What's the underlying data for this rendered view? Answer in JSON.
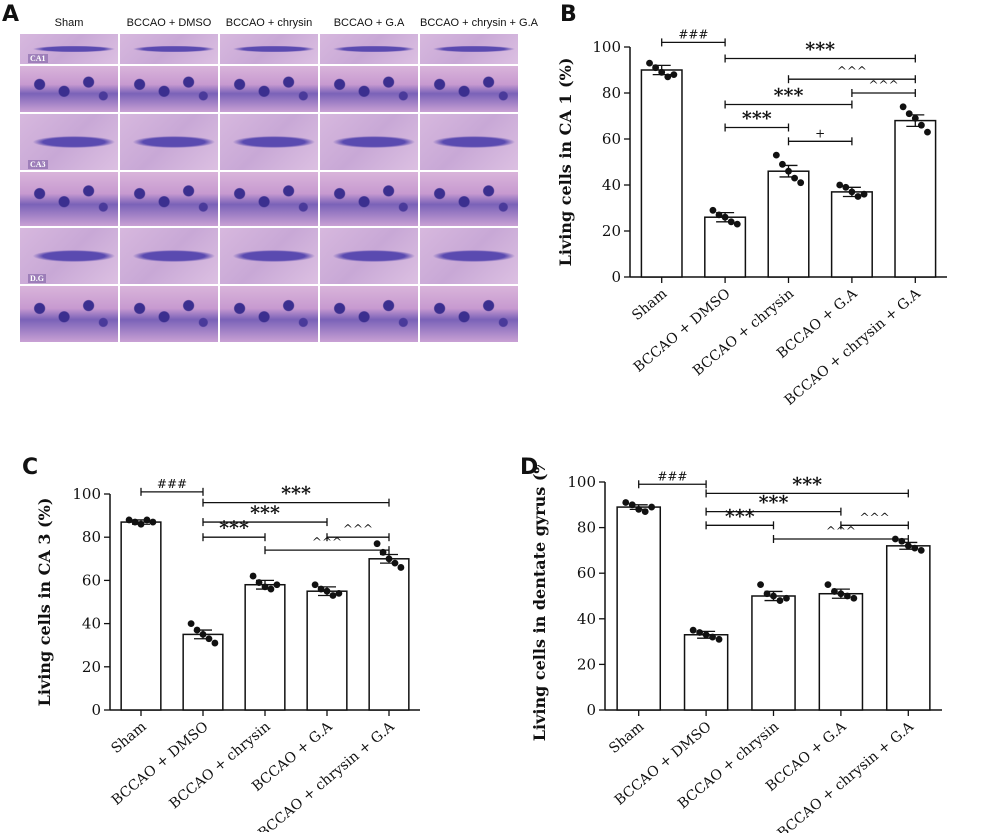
{
  "panels": {
    "a": "A",
    "b": "B",
    "c": "C",
    "d": "D"
  },
  "micrographs": {
    "columns": [
      "Sham",
      "BCCAO + DMSO",
      "BCCAO + chrysin",
      "BCCAO + G.A",
      "BCCAO + chrysin + G.A"
    ],
    "regions": [
      "CA1",
      "CA3",
      "D.G"
    ]
  },
  "chart_data": [
    {
      "id": "B",
      "type": "bar",
      "ylabel": "Living cells in CA 1 (%)",
      "xlabel": "",
      "ylim": [
        0,
        100
      ],
      "yticks": [
        0,
        20,
        40,
        60,
        80,
        100
      ],
      "categories": [
        "Sham",
        "BCCAO + DMSO",
        "BCCAO + chrysin",
        "BCCAO + G.A",
        "BCCAO + chrysin + G.A"
      ],
      "values": [
        90,
        26,
        46,
        37,
        68
      ],
      "sem": [
        2,
        2,
        2.5,
        2,
        2.5
      ],
      "points": [
        [
          93,
          91,
          89,
          87,
          88
        ],
        [
          29,
          27,
          26,
          24,
          23
        ],
        [
          53,
          49,
          46,
          43,
          41
        ],
        [
          40,
          39,
          37,
          35,
          36
        ],
        [
          74,
          71,
          69,
          66,
          63
        ]
      ],
      "comparisons": [
        {
          "from": 0,
          "to": 1,
          "y": 102,
          "label": "###"
        },
        {
          "from": 1,
          "to": 4,
          "y": 95,
          "label": "***"
        },
        {
          "from": 2,
          "to": 4,
          "y": 86,
          "label": "^^^"
        },
        {
          "from": 3,
          "to": 4,
          "y": 80,
          "label": "^^^"
        },
        {
          "from": 1,
          "to": 3,
          "y": 75,
          "label": "***"
        },
        {
          "from": 1,
          "to": 2,
          "y": 65,
          "label": "***"
        },
        {
          "from": 2,
          "to": 3,
          "y": 59,
          "label": "+"
        }
      ]
    },
    {
      "id": "C",
      "type": "bar",
      "ylabel": "Living cells in CA 3 (%)",
      "xlabel": "",
      "ylim": [
        0,
        100
      ],
      "yticks": [
        0,
        20,
        40,
        60,
        80,
        100
      ],
      "categories": [
        "Sham",
        "BCCAO + DMSO",
        "BCCAO + chrysin",
        "BCCAO + G.A",
        "BCCAO + chrysin + G.A"
      ],
      "values": [
        87,
        35,
        58,
        55,
        70
      ],
      "sem": [
        1,
        2,
        2,
        2,
        2
      ],
      "points": [
        [
          88,
          87,
          86,
          88,
          87
        ],
        [
          40,
          37,
          35,
          33,
          31
        ],
        [
          62,
          59,
          57,
          56,
          58
        ],
        [
          58,
          56,
          55,
          53,
          54
        ],
        [
          77,
          73,
          70,
          68,
          66
        ]
      ],
      "comparisons": [
        {
          "from": 0,
          "to": 1,
          "y": 101,
          "label": "###"
        },
        {
          "from": 1,
          "to": 4,
          "y": 96,
          "label": "***"
        },
        {
          "from": 1,
          "to": 3,
          "y": 87,
          "label": "***"
        },
        {
          "from": 3,
          "to": 4,
          "y": 80,
          "label": "^^^"
        },
        {
          "from": 1,
          "to": 2,
          "y": 80,
          "label": "***"
        },
        {
          "from": 2,
          "to": 4,
          "y": 74,
          "label": "^^^"
        }
      ]
    },
    {
      "id": "D",
      "type": "bar",
      "ylabel": "Living cells in dentate gyrus (%)",
      "xlabel": "",
      "ylim": [
        0,
        100
      ],
      "yticks": [
        0,
        20,
        40,
        60,
        80,
        100
      ],
      "categories": [
        "Sham",
        "BCCAO + DMSO",
        "BCCAO + chrysin",
        "BCCAO + G.A",
        "BCCAO + chrysin + G.A"
      ],
      "values": [
        89,
        33,
        50,
        51,
        72
      ],
      "sem": [
        1,
        1.5,
        2,
        2,
        1.5
      ],
      "points": [
        [
          91,
          90,
          88,
          87,
          89
        ],
        [
          35,
          34,
          33,
          32,
          31
        ],
        [
          55,
          51,
          50,
          48,
          49
        ],
        [
          55,
          52,
          51,
          50,
          49
        ],
        [
          75,
          74,
          72,
          71,
          70
        ]
      ],
      "comparisons": [
        {
          "from": 0,
          "to": 1,
          "y": 99,
          "label": "###"
        },
        {
          "from": 1,
          "to": 4,
          "y": 95,
          "label": "***"
        },
        {
          "from": 1,
          "to": 3,
          "y": 87,
          "label": "***"
        },
        {
          "from": 3,
          "to": 4,
          "y": 81,
          "label": "^^^"
        },
        {
          "from": 1,
          "to": 2,
          "y": 81,
          "label": "***"
        },
        {
          "from": 2,
          "to": 4,
          "y": 75,
          "label": "^^^"
        }
      ]
    }
  ]
}
